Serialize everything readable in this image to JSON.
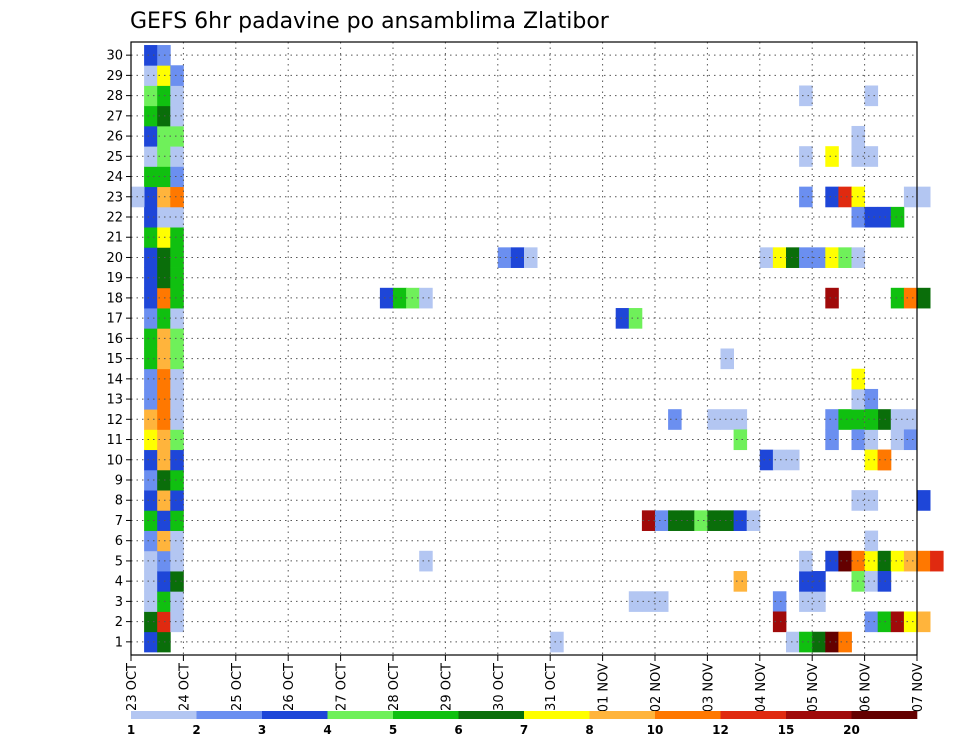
{
  "chart_data": {
    "type": "heatmap",
    "title": "GEFS 6hr padavine po ansamblima Zlatibor",
    "xlabel": "",
    "ylabel": "",
    "x_categories": [
      "23 OCT",
      "24 OCT",
      "25 OCT",
      "26 OCT",
      "27 OCT",
      "28 OCT",
      "29 OCT",
      "30 OCT",
      "31 OCT",
      "01 NOV",
      "02 NOV",
      "03 NOV",
      "04 NOV",
      "05 NOV",
      "06 NOV",
      "07 NOV"
    ],
    "y_categories": [
      "1",
      "2",
      "3",
      "4",
      "5",
      "6",
      "7",
      "8",
      "9",
      "10",
      "11",
      "12",
      "13",
      "14",
      "15",
      "16",
      "17",
      "18",
      "19",
      "20",
      "21",
      "22",
      "23",
      "24",
      "25",
      "26",
      "27",
      "28",
      "29",
      "30"
    ],
    "x_steps_per_day": 4,
    "y_range": [
      0,
      30
    ],
    "grid": true,
    "colorbar": {
      "ticks": [
        "1",
        "2",
        "3",
        "4",
        "5",
        "6",
        "7",
        "8",
        "10",
        "12",
        "15",
        "20"
      ],
      "colors": [
        "#b3c6f2",
        "#6b8ff0",
        "#1e46d8",
        "#6ff05a",
        "#10c010",
        "#0a6e0a",
        "#ffff00",
        "#ffb43c",
        "#ff7800",
        "#e02a10",
        "#a00a0a",
        "#640000"
      ]
    },
    "cells": [
      [
        1,
        0,
        2
      ],
      [
        1,
        1,
        5
      ],
      [
        1,
        2,
        0
      ],
      [
        1,
        3,
        0
      ],
      [
        1,
        4,
        0
      ],
      [
        1,
        5,
        1
      ],
      [
        1,
        6,
        4
      ],
      [
        1,
        7,
        2
      ],
      [
        1,
        8,
        1
      ],
      [
        1,
        9,
        2
      ],
      [
        1,
        10,
        6
      ],
      [
        1,
        11,
        7
      ],
      [
        1,
        12,
        1
      ],
      [
        1,
        13,
        1
      ],
      [
        1,
        14,
        4
      ],
      [
        1,
        15,
        4
      ],
      [
        1,
        16,
        1
      ],
      [
        1,
        17,
        2
      ],
      [
        1,
        18,
        2
      ],
      [
        1,
        19,
        2
      ],
      [
        1,
        20,
        4
      ],
      [
        1,
        21,
        2
      ],
      [
        1,
        22,
        2
      ],
      [
        1,
        23,
        4
      ],
      [
        1,
        24,
        0
      ],
      [
        1,
        25,
        2
      ],
      [
        1,
        26,
        4
      ],
      [
        1,
        27,
        3
      ],
      [
        1,
        28,
        0
      ],
      [
        1,
        29,
        2
      ],
      [
        0,
        22,
        0
      ],
      [
        2,
        0,
        5
      ],
      [
        2,
        1,
        9
      ],
      [
        2,
        2,
        4
      ],
      [
        2,
        3,
        2
      ],
      [
        2,
        4,
        1
      ],
      [
        2,
        5,
        7
      ],
      [
        2,
        6,
        2
      ],
      [
        2,
        7,
        7
      ],
      [
        2,
        8,
        5
      ],
      [
        2,
        9,
        7
      ],
      [
        2,
        10,
        7
      ],
      [
        2,
        11,
        8
      ],
      [
        2,
        12,
        8
      ],
      [
        2,
        13,
        8
      ],
      [
        2,
        14,
        7
      ],
      [
        2,
        15,
        7
      ],
      [
        2,
        16,
        4
      ],
      [
        2,
        17,
        8
      ],
      [
        2,
        18,
        5
      ],
      [
        2,
        19,
        5
      ],
      [
        2,
        20,
        6
      ],
      [
        2,
        21,
        0
      ],
      [
        2,
        22,
        7
      ],
      [
        2,
        23,
        4
      ],
      [
        2,
        24,
        3
      ],
      [
        2,
        25,
        3
      ],
      [
        2,
        26,
        5
      ],
      [
        2,
        27,
        4
      ],
      [
        2,
        28,
        6
      ],
      [
        2,
        29,
        1
      ],
      [
        3,
        1,
        0
      ],
      [
        3,
        2,
        0
      ],
      [
        3,
        3,
        5
      ],
      [
        3,
        4,
        0
      ],
      [
        3,
        5,
        0
      ],
      [
        3,
        6,
        4
      ],
      [
        3,
        7,
        2
      ],
      [
        3,
        8,
        4
      ],
      [
        3,
        9,
        2
      ],
      [
        3,
        10,
        3
      ],
      [
        3,
        11,
        0
      ],
      [
        3,
        12,
        0
      ],
      [
        3,
        13,
        0
      ],
      [
        3,
        14,
        3
      ],
      [
        3,
        15,
        3
      ],
      [
        3,
        16,
        0
      ],
      [
        3,
        17,
        4
      ],
      [
        3,
        18,
        4
      ],
      [
        3,
        19,
        4
      ],
      [
        3,
        20,
        4
      ],
      [
        3,
        21,
        0
      ],
      [
        3,
        22,
        8
      ],
      [
        3,
        23,
        1
      ],
      [
        3,
        24,
        0
      ],
      [
        3,
        25,
        3
      ],
      [
        3,
        26,
        0
      ],
      [
        3,
        27,
        0
      ],
      [
        3,
        28,
        1
      ],
      [
        19,
        17,
        2
      ],
      [
        20,
        17,
        4
      ],
      [
        21,
        17,
        3
      ],
      [
        22,
        17,
        0
      ],
      [
        22,
        4,
        0
      ],
      [
        28,
        19,
        1
      ],
      [
        29,
        19,
        2
      ],
      [
        30,
        19,
        0
      ],
      [
        32,
        0,
        0
      ],
      [
        37,
        16,
        2
      ],
      [
        38,
        16,
        3
      ],
      [
        38,
        2,
        0
      ],
      [
        39,
        2,
        0
      ],
      [
        40,
        2,
        0
      ],
      [
        39,
        6,
        10
      ],
      [
        40,
        6,
        1
      ],
      [
        41,
        6,
        5
      ],
      [
        42,
        6,
        5
      ],
      [
        43,
        6,
        3
      ],
      [
        44,
        6,
        5
      ],
      [
        45,
        6,
        5
      ],
      [
        46,
        6,
        2
      ],
      [
        47,
        6,
        0
      ],
      [
        41,
        11,
        1
      ],
      [
        44,
        11,
        0
      ],
      [
        45,
        11,
        0
      ],
      [
        46,
        11,
        0
      ],
      [
        46,
        10,
        3
      ],
      [
        45,
        14,
        0
      ],
      [
        46,
        3,
        7
      ],
      [
        48,
        9,
        2
      ],
      [
        49,
        9,
        0
      ],
      [
        50,
        9,
        0
      ],
      [
        48,
        19,
        0
      ],
      [
        49,
        19,
        6
      ],
      [
        50,
        19,
        5
      ],
      [
        51,
        19,
        1
      ],
      [
        52,
        19,
        1
      ],
      [
        53,
        19,
        6
      ],
      [
        54,
        19,
        3
      ],
      [
        55,
        19,
        0
      ],
      [
        49,
        2,
        1
      ],
      [
        49,
        1,
        10
      ],
      [
        50,
        0,
        0
      ],
      [
        51,
        0,
        4
      ],
      [
        52,
        0,
        5
      ],
      [
        53,
        0,
        11
      ],
      [
        54,
        0,
        8
      ],
      [
        51,
        2,
        0
      ],
      [
        52,
        2,
        0
      ],
      [
        51,
        24,
        0
      ],
      [
        51,
        27,
        0
      ],
      [
        51,
        3,
        2
      ],
      [
        52,
        3,
        2
      ],
      [
        51,
        4,
        0
      ],
      [
        51,
        22,
        1
      ],
      [
        53,
        4,
        2
      ],
      [
        54,
        4,
        11
      ],
      [
        55,
        4,
        8
      ],
      [
        56,
        4,
        6
      ],
      [
        57,
        4,
        5
      ],
      [
        58,
        4,
        6
      ],
      [
        59,
        4,
        7
      ],
      [
        60,
        4,
        8
      ],
      [
        61,
        4,
        9
      ],
      [
        53,
        10,
        1
      ],
      [
        53,
        11,
        1
      ],
      [
        54,
        11,
        4
      ],
      [
        55,
        11,
        4
      ],
      [
        56,
        11,
        6
      ],
      [
        57,
        11,
        5
      ],
      [
        58,
        11,
        0
      ],
      [
        59,
        11,
        0
      ],
      [
        53,
        17,
        10
      ],
      [
        53,
        22,
        2
      ],
      [
        54,
        22,
        9
      ],
      [
        55,
        22,
        6
      ],
      [
        53,
        24,
        6
      ],
      [
        55,
        21,
        1
      ],
      [
        56,
        21,
        2
      ],
      [
        57,
        21,
        2
      ],
      [
        58,
        21,
        4
      ],
      [
        55,
        24,
        0
      ],
      [
        55,
        25,
        0
      ],
      [
        55,
        12,
        0
      ],
      [
        56,
        12,
        1
      ],
      [
        55,
        13,
        6
      ],
      [
        55,
        3,
        3
      ],
      [
        56,
        3,
        0
      ],
      [
        57,
        3,
        2
      ],
      [
        55,
        7,
        0
      ],
      [
        56,
        7,
        0
      ],
      [
        55,
        10,
        1
      ],
      [
        56,
        10,
        0
      ],
      [
        58,
        10,
        0
      ],
      [
        59,
        10,
        1
      ],
      [
        56,
        1,
        1
      ],
      [
        57,
        1,
        4
      ],
      [
        58,
        1,
        10
      ],
      [
        59,
        1,
        6
      ],
      [
        60,
        1,
        7
      ],
      [
        56,
        9,
        6
      ],
      [
        57,
        9,
        8
      ],
      [
        57,
        9,
        8
      ],
      [
        56,
        5,
        0
      ],
      [
        56,
        24,
        0
      ],
      [
        56,
        27,
        0
      ],
      [
        56,
        11,
        4
      ],
      [
        58,
        17,
        4
      ],
      [
        59,
        17,
        8
      ],
      [
        60,
        17,
        5
      ],
      [
        59,
        22,
        0
      ],
      [
        60,
        22,
        0
      ],
      [
        60,
        7,
        2
      ]
    ]
  }
}
